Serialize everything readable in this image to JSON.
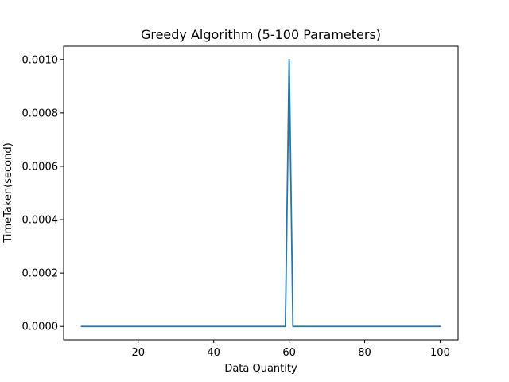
{
  "chart_data": {
    "type": "line",
    "title": "Greedy Algorithm (5-100 Parameters)",
    "xlabel": "Data Quantity",
    "ylabel": "TimeTaken(second)",
    "xlim": [
      0.25,
      104.75
    ],
    "ylim": [
      -5e-05,
      0.00105
    ],
    "x_ticks": [
      20,
      40,
      60,
      80,
      100
    ],
    "x_tick_labels": [
      "20",
      "40",
      "60",
      "80",
      "100"
    ],
    "y_ticks": [
      0,
      0.0002,
      0.0004,
      0.0006,
      0.0008,
      0.001
    ],
    "y_tick_labels": [
      "0.0000",
      "0.0002",
      "0.0004",
      "0.0006",
      "0.0008",
      "0.0010"
    ],
    "grid": false,
    "series": [
      {
        "color": "#1f77b4",
        "x": [
          5,
          59,
          60,
          61,
          100
        ],
        "y": [
          0,
          0,
          0.001,
          0,
          0
        ]
      }
    ]
  }
}
